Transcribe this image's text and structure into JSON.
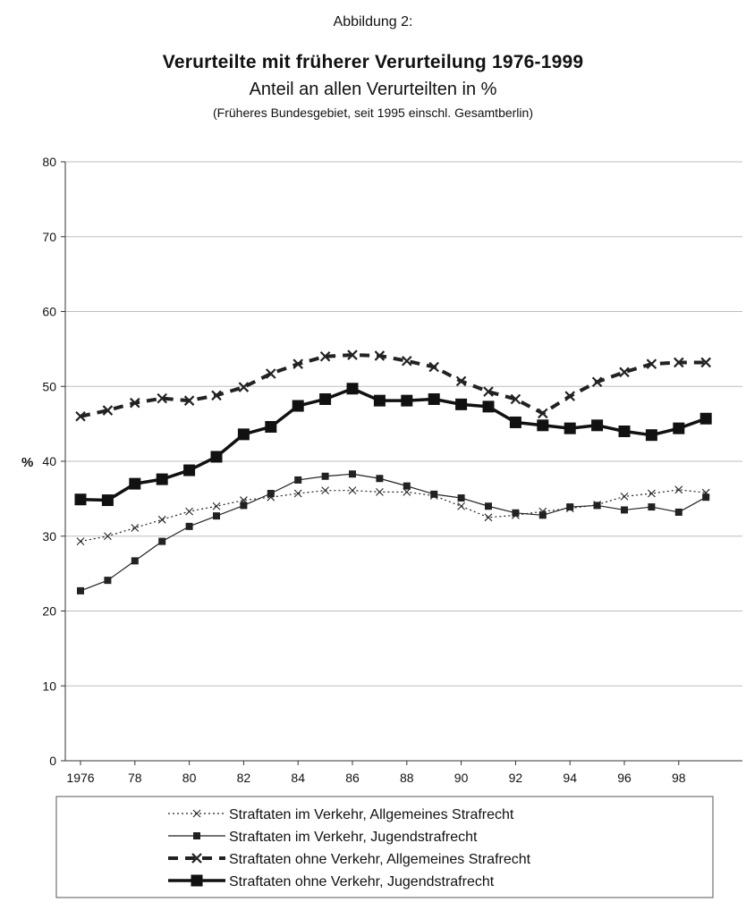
{
  "figure_label": "Abbildung 2:",
  "chart_data": {
    "type": "line",
    "title": "Verurteilte mit früherer Verurteilung 1976-1999",
    "subtitle": "Anteil an allen Verurteilten in %",
    "note": "(Früheres Bundesgebiet, seit 1995 einschl. Gesamtberlin)",
    "ylabel": "%",
    "xlabel": "",
    "ylim": [
      0,
      80
    ],
    "yticks": [
      0,
      10,
      20,
      30,
      40,
      50,
      60,
      70,
      80
    ],
    "x": [
      1976,
      1977,
      1978,
      1979,
      1980,
      1981,
      1982,
      1983,
      1984,
      1985,
      1986,
      1987,
      1988,
      1989,
      1990,
      1991,
      1992,
      1993,
      1994,
      1995,
      1996,
      1997,
      1998,
      1999
    ],
    "xtick_labels": [
      "1976",
      "78",
      "80",
      "82",
      "84",
      "86",
      "88",
      "90",
      "92",
      "94",
      "96",
      "98"
    ],
    "xtick_values": [
      1976,
      1978,
      1980,
      1982,
      1984,
      1986,
      1988,
      1990,
      1992,
      1994,
      1996,
      1998
    ],
    "grid": "horizontal",
    "legend_position": "bottom",
    "series": [
      {
        "name": "Straftaten im Verkehr, Allgemeines Strafrecht",
        "style": "dotted-cross",
        "color": "#222222",
        "values": [
          29.3,
          30.0,
          31.1,
          32.2,
          33.3,
          34.0,
          34.8,
          35.2,
          35.7,
          36.1,
          36.1,
          35.9,
          35.9,
          35.4,
          34.0,
          32.5,
          32.8,
          33.3,
          33.7,
          34.2,
          35.3,
          35.7,
          36.2,
          35.8
        ]
      },
      {
        "name": "Straftaten im Verkehr, Jugendstrafrecht",
        "style": "thin-square",
        "color": "#222222",
        "values": [
          22.7,
          24.1,
          26.7,
          29.3,
          31.3,
          32.7,
          34.1,
          35.7,
          37.5,
          38.0,
          38.3,
          37.7,
          36.7,
          35.6,
          35.1,
          34.0,
          33.1,
          32.8,
          33.9,
          34.1,
          33.5,
          33.9,
          33.2,
          35.2
        ]
      },
      {
        "name": "Straftaten ohne Verkehr, Allgemeines Strafrecht",
        "style": "dashed-cross",
        "color": "#222222",
        "values": [
          46.0,
          46.8,
          47.8,
          48.4,
          48.1,
          48.8,
          49.9,
          51.7,
          53.0,
          54.0,
          54.2,
          54.1,
          53.4,
          52.6,
          50.7,
          49.3,
          48.3,
          46.4,
          48.7,
          50.6,
          51.9,
          53.0,
          53.2,
          53.2
        ]
      },
      {
        "name": "Straftaten ohne Verkehr, Jugendstrafrecht",
        "style": "thick-square",
        "color": "#111111",
        "values": [
          34.9,
          34.8,
          37.0,
          37.6,
          38.8,
          40.6,
          43.6,
          44.6,
          47.4,
          48.3,
          49.7,
          48.1,
          48.1,
          48.3,
          47.6,
          47.3,
          45.2,
          44.8,
          44.4,
          44.8,
          44.0,
          43.5,
          44.4,
          45.7
        ]
      }
    ]
  }
}
